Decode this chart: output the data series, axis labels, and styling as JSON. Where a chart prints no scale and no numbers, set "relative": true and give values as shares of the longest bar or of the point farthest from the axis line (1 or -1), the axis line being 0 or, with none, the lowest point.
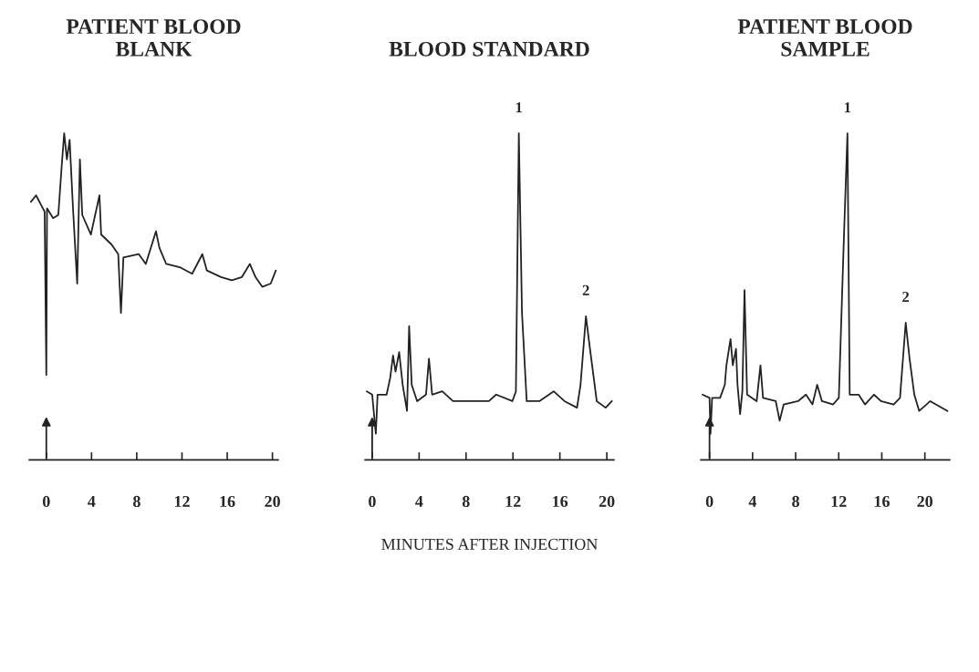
{
  "chart_data": [
    {
      "type": "line",
      "title": "PATIENT BLOOD\nBLANK",
      "relative": true,
      "xlim": [
        -1.5,
        20.5
      ],
      "xticks": [
        0,
        4,
        8,
        12,
        16,
        20
      ],
      "grid": false,
      "legend": false,
      "marker": "none",
      "line_style": "solid",
      "series": [
        {
          "color": "#222222",
          "x": [
            -1.36,
            -0.91,
            -0.15,
            0,
            0.06,
            0.6,
            1.06,
            1.36,
            1.58,
            1.82,
            2.06,
            2.36,
            2.73,
            2.97,
            3.18,
            3.94,
            4.7,
            4.85,
            5.76,
            6.36,
            6.6,
            6.82,
            8.18,
            8.8,
            9.7,
            10.0,
            10.6,
            11.8,
            12.9,
            13.8,
            14.2,
            15.45,
            16.4,
            17.3,
            18.0,
            18.5,
            19.1,
            19.85,
            20.3
          ],
          "values": [
            0.79,
            0.81,
            0.76,
            0.26,
            0.77,
            0.74,
            0.75,
            0.9,
            1.0,
            0.92,
            0.98,
            0.77,
            0.54,
            0.92,
            0.75,
            0.69,
            0.81,
            0.69,
            0.66,
            0.63,
            0.45,
            0.62,
            0.63,
            0.6,
            0.7,
            0.65,
            0.6,
            0.59,
            0.57,
            0.63,
            0.58,
            0.56,
            0.55,
            0.56,
            0.6,
            0.56,
            0.53,
            0.54,
            0.58
          ]
        }
      ]
    },
    {
      "type": "line",
      "title": "BLOOD STANDARD",
      "xlabel": "MINUTES AFTER INJECTION",
      "relative": true,
      "xlim": [
        -0.6,
        20.6
      ],
      "xticks": [
        0,
        4,
        8,
        12,
        16,
        20
      ],
      "grid": false,
      "legend": false,
      "marker": "none",
      "line_style": "solid",
      "annotations": [
        {
          "text": "1",
          "x": 12.5,
          "y": 1.0
        },
        {
          "text": "2",
          "x": 18.22,
          "y": 0.44
        }
      ],
      "series": [
        {
          "color": "#222222",
          "x": [
            -0.46,
            0,
            0.31,
            0.46,
            1.23,
            1.53,
            1.78,
            1.99,
            2.3,
            2.6,
            2.97,
            3.15,
            3.37,
            3.83,
            4.59,
            4.84,
            5.11,
            5.97,
            6.89,
            8.73,
            9.95,
            10.57,
            11.95,
            12.25,
            12.5,
            12.77,
            13.17,
            14.25,
            15.47,
            16.39,
            17.46,
            17.76,
            18.22,
            18.53,
            19.14,
            19.9,
            20.43
          ],
          "values": [
            0.21,
            0.2,
            0.08,
            0.2,
            0.2,
            0.25,
            0.32,
            0.27,
            0.33,
            0.23,
            0.15,
            0.41,
            0.23,
            0.18,
            0.2,
            0.31,
            0.2,
            0.21,
            0.18,
            0.18,
            0.18,
            0.2,
            0.18,
            0.21,
            1.0,
            0.45,
            0.18,
            0.18,
            0.21,
            0.18,
            0.16,
            0.23,
            0.44,
            0.35,
            0.18,
            0.16,
            0.18
          ]
        }
      ]
    },
    {
      "type": "line",
      "title": "PATIENT BLOOD\nSAMPLE",
      "relative": true,
      "xlim": [
        -0.8,
        22.3
      ],
      "xticks": [
        0,
        4,
        8,
        12,
        16,
        20
      ],
      "grid": false,
      "legend": false,
      "marker": "none",
      "line_style": "solid",
      "annotations": [
        {
          "text": "1",
          "x": 12.81,
          "y": 1.0
        },
        {
          "text": "2",
          "x": 18.22,
          "y": 0.42
        }
      ],
      "series": [
        {
          "color": "#222222",
          "x": [
            -0.65,
            0,
            0.09,
            0.24,
            0.98,
            1.42,
            1.57,
            1.95,
            2.16,
            2.46,
            2.6,
            2.84,
            3.05,
            3.25,
            3.49,
            4.38,
            4.73,
            4.97,
            6.15,
            6.51,
            6.89,
            8.22,
            8.96,
            9.56,
            10.0,
            10.44,
            11.48,
            12.01,
            12.46,
            12.81,
            13.02,
            13.85,
            14.44,
            15.27,
            15.92,
            17.1,
            17.69,
            18.22,
            18.58,
            19.02,
            19.47,
            20.5,
            22.1
          ],
          "values": [
            0.2,
            0.19,
            0.08,
            0.19,
            0.19,
            0.23,
            0.29,
            0.37,
            0.29,
            0.34,
            0.23,
            0.14,
            0.21,
            0.52,
            0.2,
            0.18,
            0.29,
            0.19,
            0.18,
            0.12,
            0.17,
            0.18,
            0.2,
            0.17,
            0.23,
            0.18,
            0.17,
            0.19,
            0.66,
            1.0,
            0.2,
            0.2,
            0.17,
            0.2,
            0.18,
            0.17,
            0.19,
            0.42,
            0.31,
            0.2,
            0.15,
            0.18,
            0.15
          ]
        }
      ]
    }
  ]
}
